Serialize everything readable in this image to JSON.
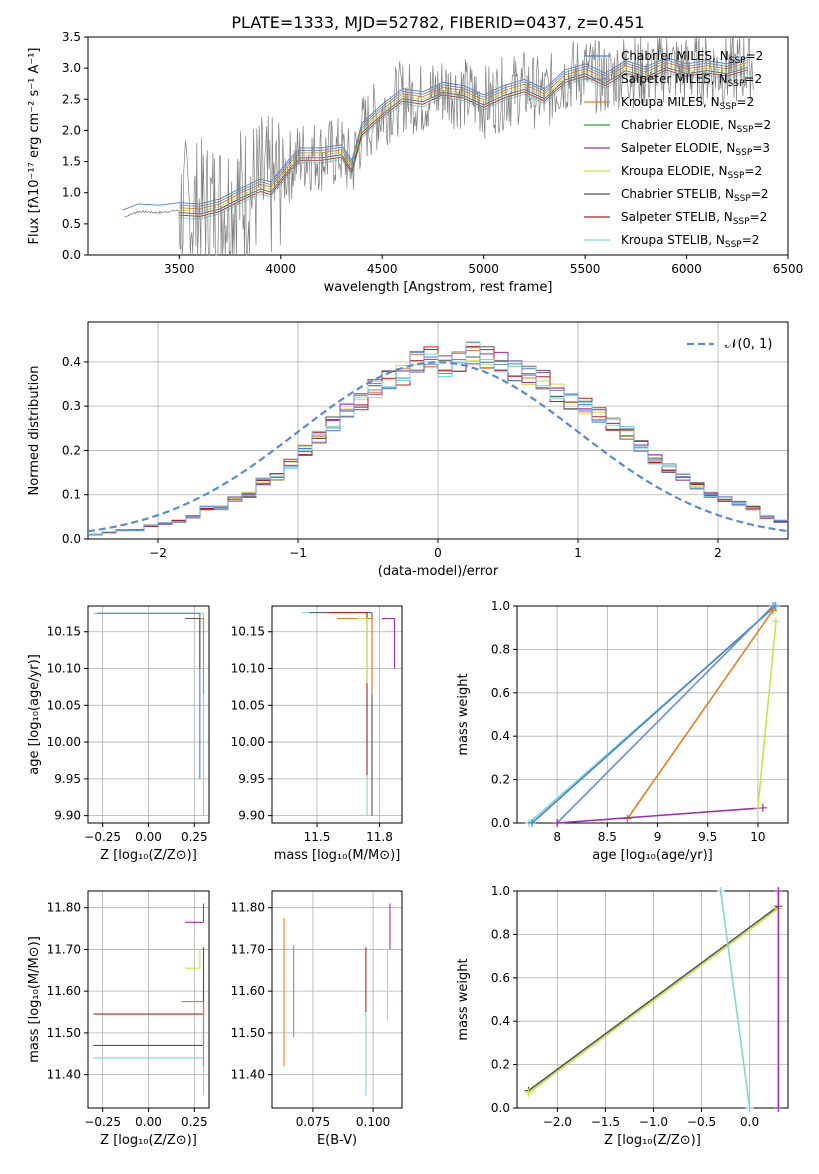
{
  "figure": {
    "title": "PLATE=1333, MJD=52782, FIBERID=0437, z=0.451"
  },
  "colors": {
    "chabrier_miles": "#4682d2",
    "salpeter_miles": "#6a8fd8",
    "kroupa_miles": "#e67e22",
    "chabrier_elodie": "#2ca02c",
    "salpeter_elodie": "#9b30b0",
    "kroupa_elodie": "#cde04a",
    "chabrier_stelib": "#555555",
    "salpeter_stelib": "#b22222",
    "kroupa_stelib": "#7fd8d8",
    "data": "#808080",
    "normal": "#5b8bd6"
  },
  "chart_data": [
    {
      "id": "spectrum",
      "type": "line",
      "title": "PLATE=1333, MJD=52782, FIBERID=0437, z=0.451",
      "xlabel": "wavelength [Angstrom, rest frame]",
      "ylabel": "Flux [fλ10⁻¹⁷ erg cm⁻² s⁻¹ A⁻¹]",
      "xlim": [
        3050,
        6500
      ],
      "ylim": [
        0,
        3.5
      ],
      "xticks": [
        3500,
        4000,
        4500,
        5000,
        5500,
        6000,
        6500
      ],
      "yticks": [
        0.0,
        0.5,
        1.0,
        1.5,
        2.0,
        2.5,
        3.0,
        3.5
      ],
      "continuum": {
        "x": [
          3220,
          3260,
          3300,
          3400,
          3500,
          3600,
          3700,
          3800,
          3900,
          3950,
          4000,
          4050,
          4100,
          4200,
          4300,
          4350,
          4400,
          4500,
          4600,
          4700,
          4800,
          4900,
          5000,
          5100,
          5200,
          5300,
          5400,
          5500,
          5600,
          5700,
          5800,
          5900,
          6000,
          6100,
          6200,
          6300
        ],
        "y": [
          0.6,
          0.65,
          0.7,
          0.68,
          0.72,
          0.7,
          0.78,
          0.95,
          1.1,
          1.05,
          1.25,
          1.45,
          1.6,
          1.6,
          1.65,
          1.4,
          2.0,
          2.3,
          2.55,
          2.5,
          2.65,
          2.6,
          2.45,
          2.6,
          2.7,
          2.55,
          2.85,
          2.95,
          2.8,
          3.0,
          2.9,
          3.05,
          2.95,
          3.0,
          2.95,
          3.05
        ]
      },
      "legend": [
        {
          "key": "chabrier_miles",
          "label": "Chabrier MILES, N",
          "sub": "SSP",
          "tail": "=2"
        },
        {
          "key": "salpeter_miles",
          "label": "Salpeter MILES, N",
          "sub": "SSP",
          "tail": "=2"
        },
        {
          "key": "kroupa_miles",
          "label": "Kroupa MILES, N",
          "sub": "SSP",
          "tail": "=2"
        },
        {
          "key": "chabrier_elodie",
          "label": "Chabrier ELODIE, N",
          "sub": "SSP",
          "tail": "=2"
        },
        {
          "key": "salpeter_elodie",
          "label": "Salpeter ELODIE, N",
          "sub": "SSP",
          "tail": "=3"
        },
        {
          "key": "kroupa_elodie",
          "label": "Kroupa ELODIE, N",
          "sub": "SSP",
          "tail": "=2"
        },
        {
          "key": "chabrier_stelib",
          "label": "Chabrier STELIB, N",
          "sub": "SSP",
          "tail": "=2"
        },
        {
          "key": "salpeter_stelib",
          "label": "Salpeter STELIB, N",
          "sub": "SSP",
          "tail": "=2"
        },
        {
          "key": "kroupa_stelib",
          "label": "Kroupa STELIB, N",
          "sub": "SSP",
          "tail": "=2"
        }
      ]
    },
    {
      "id": "residuals",
      "type": "line",
      "xlabel": "(data-model)/error",
      "ylabel": "Normed distribution",
      "xlim": [
        -2.5,
        2.5
      ],
      "ylim": [
        0,
        0.49
      ],
      "xticks": [
        -2,
        -1,
        0,
        1,
        2
      ],
      "yticks": [
        0.0,
        0.1,
        0.2,
        0.3,
        0.4
      ],
      "legend_label": "𝒩(0, 1)",
      "legend_position": "top-right",
      "grid": true,
      "bins": [
        -2.5,
        -2.4,
        -2.3,
        -2.2,
        -2.1,
        -2.0,
        -1.9,
        -1.8,
        -1.7,
        -1.6,
        -1.5,
        -1.4,
        -1.3,
        -1.2,
        -1.1,
        -1.0,
        -0.9,
        -0.8,
        -0.7,
        -0.6,
        -0.5,
        -0.4,
        -0.3,
        -0.2,
        -0.1,
        0.0,
        0.1,
        0.2,
        0.3,
        0.4,
        0.5,
        0.6,
        0.7,
        0.8,
        0.9,
        1.0,
        1.1,
        1.2,
        1.3,
        1.4,
        1.5,
        1.6,
        1.7,
        1.8,
        1.9,
        2.0,
        2.1,
        2.2,
        2.3,
        2.4
      ],
      "hist": [
        0.01,
        0.015,
        0.02,
        0.02,
        0.03,
        0.035,
        0.04,
        0.05,
        0.07,
        0.07,
        0.09,
        0.1,
        0.13,
        0.14,
        0.17,
        0.2,
        0.23,
        0.26,
        0.29,
        0.31,
        0.34,
        0.36,
        0.37,
        0.4,
        0.41,
        0.39,
        0.4,
        0.42,
        0.41,
        0.4,
        0.38,
        0.37,
        0.36,
        0.33,
        0.31,
        0.3,
        0.28,
        0.26,
        0.24,
        0.21,
        0.18,
        0.16,
        0.14,
        0.12,
        0.1,
        0.09,
        0.08,
        0.07,
        0.05,
        0.04
      ]
    },
    {
      "id": "age-vs-z",
      "type": "scatter",
      "xlabel": "Z [log₁₀(Z/Z⊙)]",
      "ylabel": "age  [log₁₀(age/yr)]",
      "xlim": [
        -0.33,
        0.33
      ],
      "ylim": [
        9.89,
        10.185
      ],
      "xticks": [
        -0.25,
        0.0,
        0.25
      ],
      "xticklabels": [
        "−0.25",
        "0.00",
        "0.25"
      ],
      "yticks": [
        9.9,
        9.95,
        10.0,
        10.05,
        10.1,
        10.15
      ],
      "grid": true
    },
    {
      "id": "age-vs-mass",
      "type": "scatter",
      "xlabel": "mass [log₁₀(M/M⊙)]",
      "xlim": [
        11.32,
        11.84
      ],
      "ylim": [
        9.89,
        10.185
      ],
      "xticks": [
        11.5,
        11.75
      ],
      "yticks": [
        9.9,
        9.95,
        10.0,
        10.05,
        10.1,
        10.15
      ],
      "grid": true
    },
    {
      "id": "weight-vs-age",
      "type": "line",
      "xlabel": "age  [log₁₀(age/yr)]",
      "ylabel": "mass weight",
      "xlim": [
        7.6,
        10.3
      ],
      "ylim": [
        0,
        1.0
      ],
      "xticks": [
        8.0,
        8.5,
        9.0,
        9.5,
        10.0
      ],
      "yticks": [
        0.0,
        0.2,
        0.4,
        0.6,
        0.8,
        1.0
      ],
      "grid": true,
      "series": [
        {
          "key": "kroupa_stelib",
          "x": [
            7.72,
            10.18
          ],
          "y": [
            0.0,
            1.0
          ]
        },
        {
          "key": "chabrier_miles",
          "x": [
            7.75,
            10.17
          ],
          "y": [
            0.0,
            1.0
          ]
        },
        {
          "key": "salpeter_miles",
          "x": [
            8.0,
            10.15
          ],
          "y": [
            0.0,
            1.0
          ]
        },
        {
          "key": "kroupa_miles",
          "x": [
            8.7,
            10.15
          ],
          "y": [
            0.02,
            0.98
          ]
        },
        {
          "key": "salpeter_elodie",
          "x": [
            8.0,
            10.05
          ],
          "y": [
            0.0,
            0.07
          ]
        },
        {
          "key": "kroupa_elodie",
          "x": [
            10.0,
            10.18
          ],
          "y": [
            0.07,
            0.93
          ]
        }
      ]
    },
    {
      "id": "mass-vs-z",
      "type": "scatter",
      "xlabel": "Z [log₁₀(Z/Z⊙)]",
      "ylabel": "mass [log₁₀(M/M⊙)]",
      "xlim": [
        -0.33,
        0.33
      ],
      "ylim": [
        11.32,
        11.84
      ],
      "xticks": [
        -0.25,
        0.0,
        0.25
      ],
      "xticklabels": [
        "−0.25",
        "0.00",
        "0.25"
      ],
      "yticks": [
        11.4,
        11.5,
        11.6,
        11.7,
        11.8
      ],
      "grid": true
    },
    {
      "id": "mass-vs-ebv",
      "type": "scatter",
      "xlabel": "E(B-V)",
      "xlim": [
        0.058,
        0.112
      ],
      "ylim": [
        11.32,
        11.84
      ],
      "xticks": [
        0.075,
        0.1
      ],
      "xticklabels": [
        "0.075",
        "0.100"
      ],
      "yticks": [
        11.4,
        11.5,
        11.6,
        11.7,
        11.8
      ],
      "grid": true
    },
    {
      "id": "weight-vs-z",
      "type": "line",
      "xlabel": "Z [log₁₀(Z/Z⊙)]",
      "ylabel": "mass weight",
      "xlim": [
        -2.42,
        0.4
      ],
      "ylim": [
        0,
        1.0
      ],
      "xticks": [
        -2.0,
        -1.5,
        -1.0,
        -0.5,
        0.0
      ],
      "xticklabels": [
        "−2.0",
        "−1.5",
        "−1.0",
        "−0.5",
        "0.0"
      ],
      "yticks": [
        0.0,
        0.2,
        0.4,
        0.6,
        0.8,
        1.0
      ],
      "grid": true,
      "series": [
        {
          "key": "chabrier_stelib",
          "x": [
            -2.3,
            0.3
          ],
          "y": [
            0.08,
            0.93
          ]
        },
        {
          "key": "kroupa_elodie",
          "x": [
            -2.3,
            0.3
          ],
          "y": [
            0.07,
            0.92
          ]
        },
        {
          "key": "kroupa_stelib",
          "x": [
            -0.3,
            0.0
          ],
          "y": [
            1.0,
            0.0
          ]
        },
        {
          "key": "salpeter_elodie",
          "x": [
            0.3,
            0.3
          ],
          "y": [
            0.0,
            1.0
          ]
        }
      ]
    }
  ]
}
